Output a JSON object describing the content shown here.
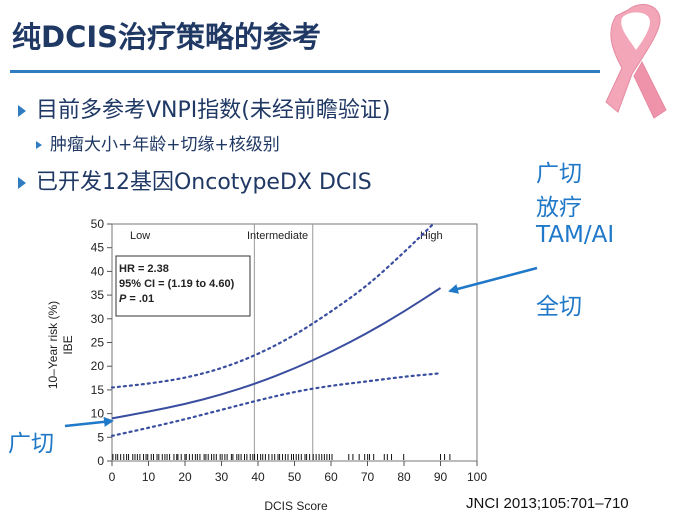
{
  "slide": {
    "title": "纯DCIS治疗策略的参考",
    "bullets": [
      "目前多参考VNPI指数(未经前瞻验证)",
      "肿瘤大小+年龄+切缘+核级别",
      "已开发12基因OncotypeDX DCIS"
    ],
    "labels": {
      "upper_right": [
        "广切",
        "放疗",
        "TAM/AI"
      ],
      "full_excision": "全切",
      "wide_excision": "广切"
    },
    "citation": "JNCI 2013;105:701–710"
  },
  "colors": {
    "title": "#1f3864",
    "rule": "#2f7dc0",
    "accent_label": "#1f78c8",
    "curve": "#3a4ea0",
    "ribbon": "#f2a6b8"
  },
  "chart_data": {
    "type": "line",
    "xlabel": "DCIS Score",
    "ylabel_lines": [
      "10–Year risk (%)",
      "IBE"
    ],
    "xlim": [
      0,
      100
    ],
    "ylim": [
      0,
      50
    ],
    "x_ticks": [
      "0",
      "10",
      "20",
      "30",
      "40",
      "50",
      "60",
      "70",
      "80",
      "90",
      "100"
    ],
    "y_ticks": [
      "0",
      "5",
      "10",
      "15",
      "20",
      "25",
      "30",
      "35",
      "40",
      "45",
      "50"
    ],
    "regions": [
      {
        "label": "Low",
        "from": 0,
        "to": 39
      },
      {
        "label": "Intermediate",
        "from": 39,
        "to": 55
      },
      {
        "label": "High",
        "from": 55,
        "to": 100
      }
    ],
    "stats": {
      "hr": "HR = 2.38",
      "ci": "95% CI = (1.19 to 4.60)",
      "p_italic": "P",
      "p_rest": " = .01"
    },
    "series": [
      {
        "style": "solid",
        "points": [
          [
            0,
            9
          ],
          [
            10,
            10.4
          ],
          [
            20,
            12
          ],
          [
            30,
            14
          ],
          [
            40,
            16.5
          ],
          [
            50,
            19.5
          ],
          [
            60,
            23
          ],
          [
            70,
            27
          ],
          [
            80,
            31.5
          ],
          [
            90,
            36.5
          ]
        ]
      },
      {
        "style": "dotted",
        "points": [
          [
            0,
            15.5
          ],
          [
            10,
            16.3
          ],
          [
            20,
            17.5
          ],
          [
            30,
            19.5
          ],
          [
            40,
            22.5
          ],
          [
            50,
            26.5
          ],
          [
            60,
            31.5
          ],
          [
            70,
            37
          ],
          [
            80,
            44
          ],
          [
            88,
            50
          ]
        ]
      },
      {
        "style": "dotted",
        "points": [
          [
            0,
            5.3
          ],
          [
            10,
            7
          ],
          [
            20,
            8.8
          ],
          [
            30,
            10.8
          ],
          [
            40,
            12.8
          ],
          [
            50,
            14.6
          ],
          [
            60,
            15.9
          ],
          [
            70,
            16.8
          ],
          [
            80,
            17.8
          ],
          [
            90,
            18.5
          ]
        ]
      }
    ]
  }
}
